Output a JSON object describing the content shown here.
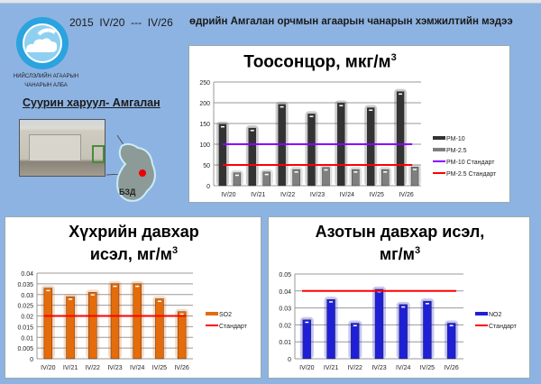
{
  "header": {
    "year": "2015",
    "start": "IV/20",
    "sep": "---",
    "end": "IV/26",
    "title": "өдрийн Амгалан орчмын агаарын чанарын хэмжилтийн мэдээ"
  },
  "org": {
    "line1": "НИЙСЛЭЛИЙН АГААРЫН",
    "line2": "ЧАНАРЫН АЛБА"
  },
  "station": {
    "label": "Суурин харуул- Амгалан",
    "map_label": "БЗД"
  },
  "colors": {
    "background": "#8db3e2",
    "pm10": "#333333",
    "pm25": "#7f7f7f",
    "pm10_std": "#8b00ff",
    "pm25_std": "#ff0000",
    "so2": "#e46c0a",
    "no2": "#1f1fd6",
    "std": "#ff0000"
  },
  "chart_data": [
    {
      "type": "bar",
      "title": "Тоосонцор, мкг/м",
      "title_sup": "3",
      "categories": [
        "IV/20",
        "IV/21",
        "IV/22",
        "IV/23",
        "IV/24",
        "IV/25",
        "IV/26"
      ],
      "ylim": [
        0,
        250
      ],
      "yticks": [
        "0",
        "50",
        "100",
        "150",
        "200",
        "250"
      ],
      "grid": true,
      "legend": "right",
      "series": [
        {
          "name": "PM-10",
          "values": [
            148,
            139,
            196,
            173,
            199,
            188,
            227
          ]
        },
        {
          "name": "PM-2.5",
          "values": [
            31,
            33,
            39,
            44,
            39,
            39,
            45
          ]
        }
      ],
      "lines": [
        {
          "name": "PM-10 Стандарт",
          "value": 100
        },
        {
          "name": "PM-2.5 Стандарт",
          "value": 50
        }
      ]
    },
    {
      "type": "bar",
      "title": "Хүхрийн давхар",
      "title2": "исэл, мг/м",
      "title_sup": "3",
      "categories": [
        "IV/20",
        "IV/21",
        "IV/22",
        "IV/23",
        "IV/24",
        "IV/25",
        "IV/26"
      ],
      "ylim": [
        0,
        0.04
      ],
      "yticks": [
        "0",
        "0.005",
        "0.01",
        "0.015",
        "0.02",
        "0.025",
        "0.03",
        "0.035",
        "0.04"
      ],
      "grid": true,
      "legend": "right",
      "series": [
        {
          "name": "SO2",
          "values": [
            0.033,
            0.029,
            0.031,
            0.035,
            0.035,
            0.028,
            0.022
          ]
        }
      ],
      "lines": [
        {
          "name": "Стандарт",
          "value": 0.02
        }
      ]
    },
    {
      "type": "bar",
      "title": "Азотын давхар исэл,",
      "title2": "мг/м",
      "title_sup": "3",
      "categories": [
        "IV/20",
        "IV/21",
        "IV/22",
        "IV/23",
        "IV/24",
        "IV/25",
        "IV/26"
      ],
      "ylim": [
        0,
        0.05
      ],
      "yticks": [
        "0",
        "0.01",
        "0.02",
        "0.03",
        "0.04",
        "0.05"
      ],
      "grid": true,
      "legend": "right",
      "series": [
        {
          "name": "NO2",
          "values": [
            0.023,
            0.035,
            0.021,
            0.041,
            0.032,
            0.034,
            0.021
          ]
        }
      ],
      "lines": [
        {
          "name": "Стандарт",
          "value": 0.04
        }
      ]
    }
  ]
}
